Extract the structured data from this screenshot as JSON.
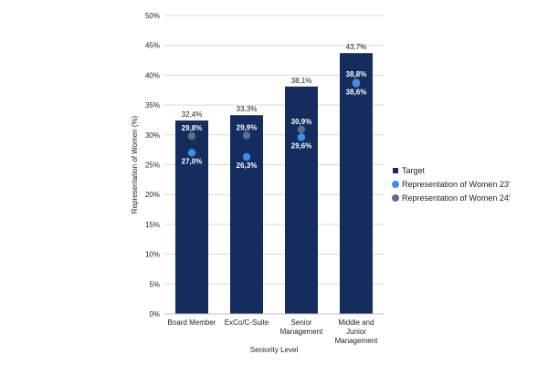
{
  "chart_data": {
    "type": "bar",
    "xlabel": "Seniority Level",
    "ylabel": "Representation of Women (%)",
    "ylim": [
      0,
      50
    ],
    "y_ticks": [
      0,
      5,
      10,
      15,
      20,
      25,
      30,
      35,
      40,
      45,
      50
    ],
    "y_tick_labels": [
      "0%",
      "5%",
      "10%",
      "15%",
      "20%",
      "25%",
      "30%",
      "35%",
      "40%",
      "45%",
      "50%"
    ],
    "grid": true,
    "legend_position": "right",
    "categories": [
      [
        "Board Member"
      ],
      [
        "ExCo/C-Suite"
      ],
      [
        "Senior",
        "Management"
      ],
      [
        "Middle and",
        "Junior",
        "Management"
      ]
    ],
    "series": [
      {
        "name": "Target",
        "type": "bar",
        "color": "#142d5e",
        "values": [
          32.4,
          33.3,
          38.1,
          43.7
        ],
        "labels": [
          "32,4%",
          "33,3%",
          "38,1%",
          "43,7%"
        ]
      },
      {
        "name": "Representation of Women 23'",
        "type": "scatter",
        "color": "#3d8ee8",
        "values": [
          27.0,
          26.3,
          29.6,
          38.6
        ],
        "labels": [
          "27,0%",
          "26,3%",
          "29,6%",
          "38,6%"
        ]
      },
      {
        "name": "Representation of Women 24'",
        "type": "scatter",
        "color": "#5b6f8c",
        "values": [
          29.8,
          29.9,
          30.9,
          38.8
        ],
        "labels": [
          "29,8%",
          "29,9%",
          "30,9%",
          "38,8%"
        ]
      }
    ]
  }
}
